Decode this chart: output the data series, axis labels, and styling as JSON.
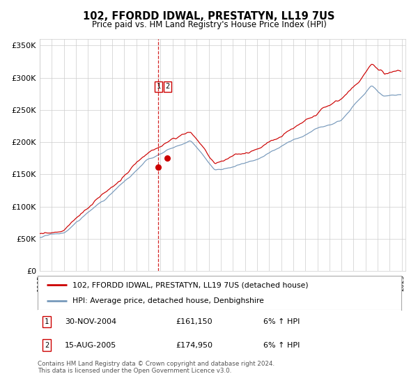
{
  "title": "102, FFORDD IDWAL, PRESTATYN, LL19 7US",
  "subtitle": "Price paid vs. HM Land Registry's House Price Index (HPI)",
  "legend_line1": "102, FFORDD IDWAL, PRESTATYN, LL19 7US (detached house)",
  "legend_line2": "HPI: Average price, detached house, Denbighshire",
  "transaction1_date": "30-NOV-2004",
  "transaction1_price": 161150,
  "transaction1_note": "6% ↑ HPI",
  "transaction2_date": "15-AUG-2005",
  "transaction2_price": 174950,
  "transaction2_note": "6% ↑ HPI",
  "footer": "Contains HM Land Registry data © Crown copyright and database right 2024.\nThis data is licensed under the Open Government Licence v3.0.",
  "hpi_color": "#7799bb",
  "price_color": "#cc0000",
  "marker_color": "#cc0000",
  "vline_color_red": "#cc0000",
  "ylim": [
    0,
    360000
  ],
  "ylabel_ticks": [
    0,
    50000,
    100000,
    150000,
    200000,
    250000,
    300000,
    350000
  ],
  "background_color": "#ffffff",
  "grid_color": "#cccccc"
}
